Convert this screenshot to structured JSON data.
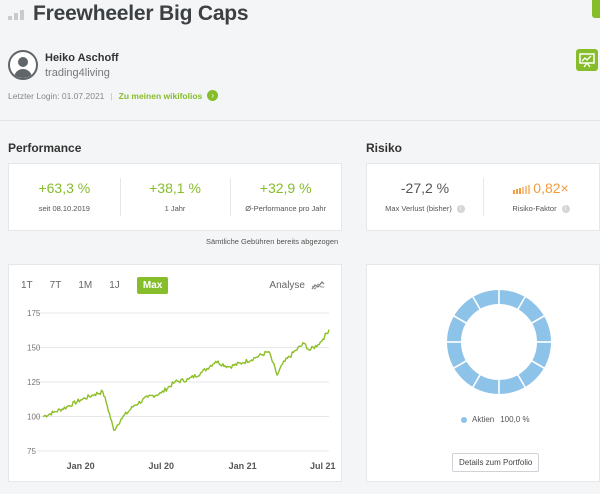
{
  "header": {
    "title": "Freewheeler Big Caps",
    "trader_name": "Heiko Aschoff",
    "trader_nickname": "trading4living",
    "last_login": "Letzter Login: 01.07.2021",
    "separator": "|",
    "wikifolios_link": "Zu meinen wikifolios",
    "icons": {
      "title": "signal-bars-icon",
      "avatar": "user-icon",
      "presentation": "presentation-icon",
      "corner": "edit-icon",
      "link": "chevron-right-icon"
    }
  },
  "performance": {
    "section_title": "Performance",
    "metrics": [
      {
        "value": "+63,3 %",
        "label": "seit 08.10.2019"
      },
      {
        "value": "+38,1 %",
        "label": "1 Jahr"
      },
      {
        "value": "+32,9 %",
        "label": "Ø-Performance pro Jahr"
      }
    ],
    "fee_note": "Sämtliche Gebühren bereits abgezogen"
  },
  "risk": {
    "section_title": "Risiko",
    "metrics": [
      {
        "value": "-27,2 %",
        "label": "Max Verlust (bisher)"
      },
      {
        "value": "0,82",
        "suffix": "×",
        "label": "Risiko-Faktor",
        "level": 3,
        "levels": 6
      }
    ],
    "info_glyph": "i"
  },
  "chart": {
    "tabs": [
      "1T",
      "7T",
      "1M",
      "1J",
      "Max"
    ],
    "active_tab": "Max",
    "analyse_label": "Analyse",
    "colors": {
      "line": "#8cbf26",
      "grid": "#e6e7e9"
    },
    "chart_data": {
      "type": "line",
      "title": "",
      "xlabel": "",
      "ylabel": "",
      "x_range": [
        "2019-10-08",
        "2021-07-15"
      ],
      "ylim": [
        75,
        175
      ],
      "yticks": [
        75,
        100,
        125,
        150,
        175
      ],
      "xticks": [
        {
          "label": "Jan 20",
          "date": "2020-01-01"
        },
        {
          "label": "Jul 20",
          "date": "2020-07-01"
        },
        {
          "label": "Jan 21",
          "date": "2021-01-01"
        },
        {
          "label": "Jul 21",
          "date": "2021-07-01"
        }
      ],
      "series": [
        {
          "x": [
            "2019-10-08",
            "2019-11-01",
            "2019-12-01",
            "2020-01-01",
            "2020-02-01",
            "2020-02-20",
            "2020-03-01",
            "2020-03-16",
            "2020-04-01",
            "2020-05-01",
            "2020-06-01",
            "2020-07-01",
            "2020-08-01",
            "2020-09-01",
            "2020-10-01",
            "2020-11-01",
            "2020-12-01",
            "2021-01-01",
            "2021-02-01",
            "2021-03-01",
            "2021-03-20",
            "2021-04-01",
            "2021-05-01",
            "2021-05-20",
            "2021-06-01",
            "2021-06-20",
            "2021-07-01",
            "2021-07-15"
          ],
          "y": [
            100,
            103,
            107,
            112,
            116,
            118,
            108,
            90,
            98,
            108,
            114,
            117,
            125,
            127,
            132,
            140,
            136,
            139,
            143,
            147,
            130,
            138,
            148,
            153,
            148,
            152,
            156,
            163
          ]
        }
      ]
    }
  },
  "allocation": {
    "chart_data": {
      "type": "pie",
      "labels": [
        "Aktien"
      ],
      "values": [
        100.0
      ],
      "value_labels": [
        "100,0 %"
      ],
      "colors": [
        "#8dc3e9"
      ]
    },
    "button_label": "Details zum Portfolio"
  }
}
